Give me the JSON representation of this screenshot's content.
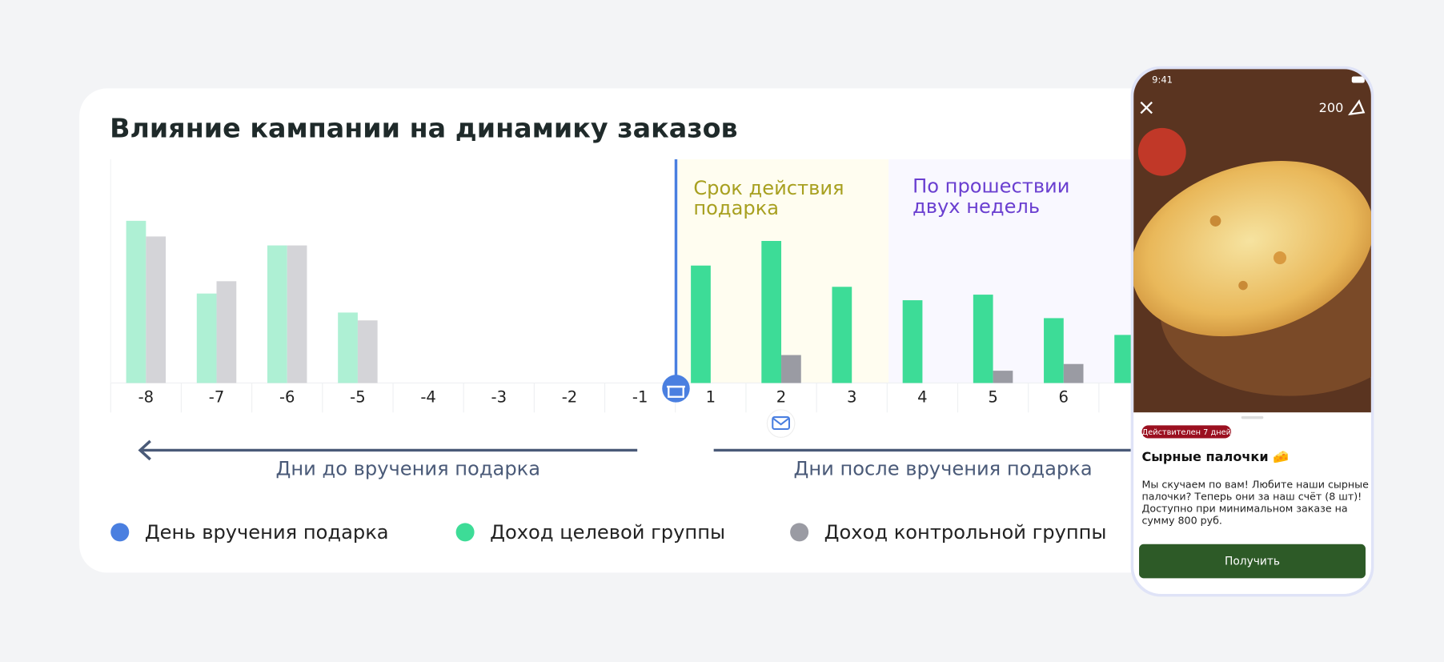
{
  "chart_data": {
    "type": "bar",
    "title": "Влияние кампании на динамику заказов",
    "categories": [
      "-8",
      "-7",
      "-6",
      "-5",
      "-4",
      "-3",
      "-2",
      "-1",
      "1",
      "2",
      "3",
      "4",
      "5",
      "6",
      null
    ],
    "series": [
      {
        "name": "Доход целевой группы",
        "color": "#3ddc97",
        "colors": [
          "#aef0d4",
          "#aef0d4",
          "#aef0d4",
          "#aef0d4",
          "#aef0d4",
          "#aef0d4",
          "#aef0d4",
          "#aef0d4",
          "#3ddc97",
          "#3ddc97",
          "#3ddc97",
          "#3ddc97",
          "#3ddc97",
          "#3ddc97",
          "#3ddc97"
        ],
        "values": [
          145,
          80,
          123,
          63,
          null,
          null,
          null,
          null,
          105,
          127,
          86,
          74,
          79,
          58,
          43
        ]
      },
      {
        "name": "Доход контрольной группы",
        "color": "#9a9ba3",
        "colors": [
          "#d4d4d8",
          "#d4d4d8",
          "#d4d4d8",
          "#d4d4d8",
          "#d4d4d8",
          "#d4d4d8",
          "#d4d4d8",
          "#d4d4d8",
          "#9a9ba3",
          "#9a9ba3",
          "#9a9ba3",
          "#9a9ba3",
          "#9a9ba3",
          "#9a9ba3",
          "#9a9ba3"
        ],
        "values": [
          131,
          91,
          123,
          56,
          null,
          null,
          null,
          null,
          null,
          25,
          null,
          null,
          11,
          17,
          null
        ]
      }
    ],
    "ylim": [
      0,
      200
    ],
    "marker_label": "День вручения подарка",
    "marker_color": "#4a7fe0",
    "annotations": [
      {
        "lines": [
          "Срок действия",
          "подарка"
        ],
        "color": "#a8a020"
      },
      {
        "lines": [
          "По прошествии",
          "двух недель"
        ],
        "color": "#6a3fd0"
      }
    ],
    "axis_labels": [
      "Дни до вручения подарка",
      "Дни после вручения подарка"
    ]
  },
  "phone": {
    "time": "9:41",
    "points": "200",
    "badge": "Действителен 7 дней",
    "title": "Сырные палочки 🧀",
    "body": [
      "Мы скучаем по вам! Любите наши сырные",
      "палочки? Теперь они за наш счёт (8 шт)!",
      "Доступно при минимальном заказе на",
      "сумму 800 руб."
    ],
    "button": "Получить"
  }
}
